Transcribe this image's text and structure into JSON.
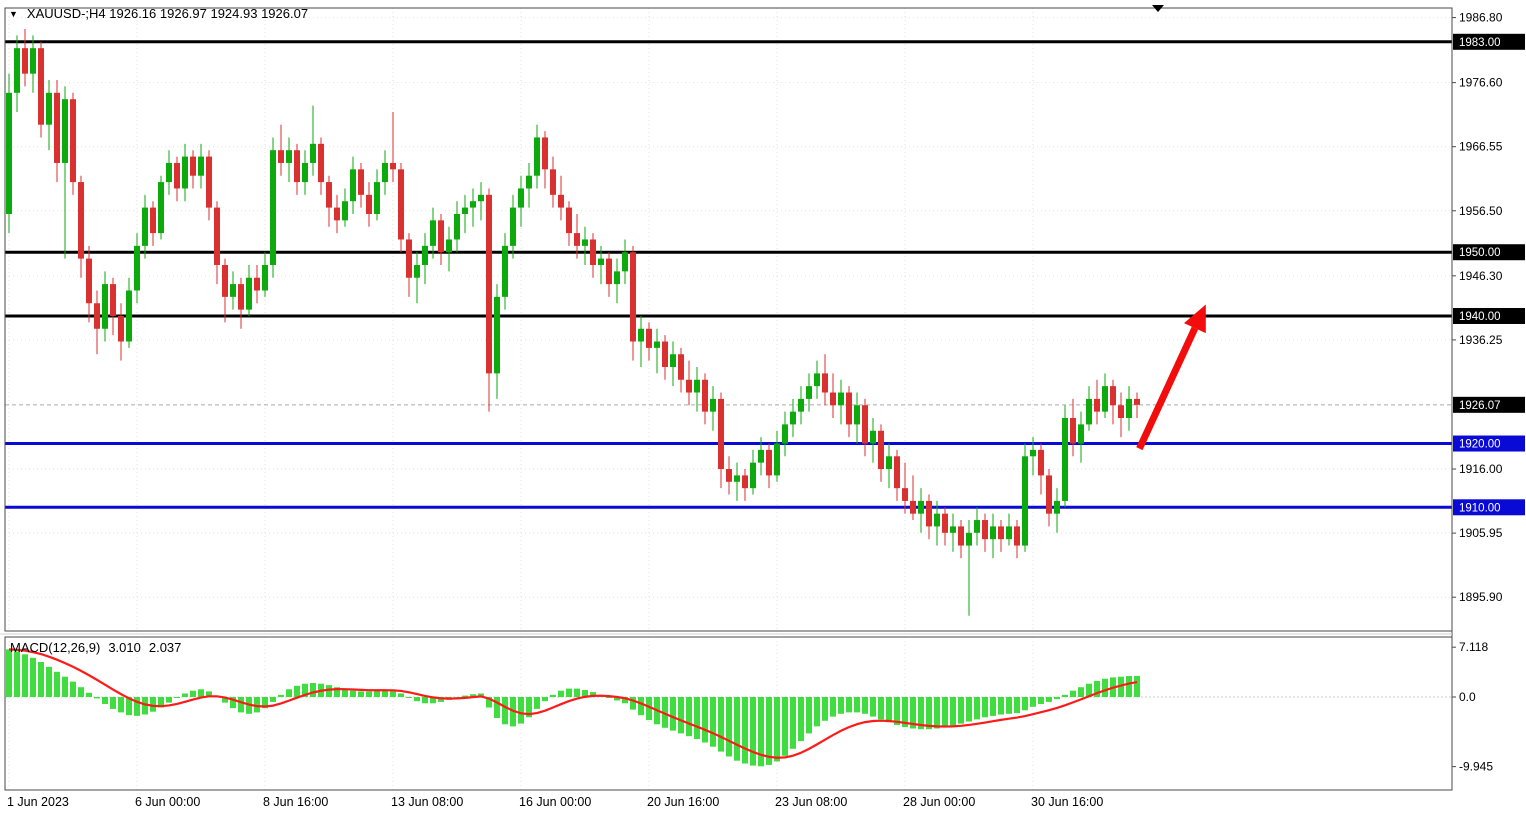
{
  "header": {
    "symbol_ohlc_text": "XAUUSD-;H4 1926.16 1926.97 1924.93 1926.07"
  },
  "chart_data": {
    "type": "candlestick",
    "title": "XAUUSD-;H4",
    "symbol": "XAUUSD-",
    "timeframe": "H4",
    "ohlc": {
      "open": 1926.16,
      "high": 1926.97,
      "low": 1924.93,
      "close": 1926.07
    },
    "price_axis": {
      "range": {
        "max": 1988.3,
        "min": 1890.6
      },
      "ticks": [
        {
          "value": 1986.8,
          "label": "1986.80"
        },
        {
          "value": 1976.6,
          "label": "1976.60"
        },
        {
          "value": 1966.55,
          "label": "1966.55"
        },
        {
          "value": 1956.5,
          "label": "1956.50"
        },
        {
          "value": 1946.3,
          "label": "1946.30"
        },
        {
          "value": 1936.25,
          "label": "1936.25"
        },
        {
          "value": 1916.0,
          "label": "1916.00"
        },
        {
          "value": 1905.95,
          "label": "1905.95"
        },
        {
          "value": 1895.9,
          "label": "1895.90"
        }
      ]
    },
    "time_axis": {
      "labels": [
        {
          "text": "1 Jun 2023",
          "index": 0
        },
        {
          "text": "6 Jun 00:00",
          "index": 16
        },
        {
          "text": "8 Jun 16:00",
          "index": 32
        },
        {
          "text": "13 Jun 08:00",
          "index": 48
        },
        {
          "text": "16 Jun 00:00",
          "index": 64
        },
        {
          "text": "20 Jun 16:00",
          "index": 80
        },
        {
          "text": "23 Jun 08:00",
          "index": 96
        },
        {
          "text": "28 Jun 00:00",
          "index": 112
        },
        {
          "text": "30 Jun 16:00",
          "index": 128
        }
      ]
    },
    "levels": [
      {
        "value": 1983.0,
        "label": "1983.00",
        "color": "#000000",
        "width": 3
      },
      {
        "value": 1950.0,
        "label": "1950.00",
        "color": "#000000",
        "width": 3
      },
      {
        "value": 1940.0,
        "label": "1940.00",
        "color": "#000000",
        "width": 3
      },
      {
        "value": 1920.0,
        "label": "1920.00",
        "color": "#0a0ad6",
        "width": 3
      },
      {
        "value": 1910.0,
        "label": "1910.00",
        "color": "#0a0ad6",
        "width": 3
      }
    ],
    "current_price": {
      "value": 1926.07,
      "label": "1926.07",
      "box_color": "#000000"
    },
    "colors": {
      "up": "#0caa0c",
      "down": "#d93030",
      "grid": "#e2e2e2",
      "border": "#4a4a4a",
      "arrow": "#f20c0c",
      "macd_hist": "#3fdd3f",
      "macd_signal": "#ff1a1a"
    },
    "trend_arrow": {
      "from_index": 141.3,
      "from_price": 1919.2,
      "to_index": 149.6,
      "to_price": 1941.8,
      "width": 7
    },
    "candles": [
      [
        1956,
        1978,
        1953,
        1975
      ],
      [
        1975,
        1984,
        1972,
        1982
      ],
      [
        1982,
        1985,
        1976,
        1978
      ],
      [
        1978,
        1984,
        1975,
        1982
      ],
      [
        1982,
        1983,
        1968,
        1970
      ],
      [
        1970,
        1977,
        1966,
        1975
      ],
      [
        1975,
        1977,
        1961,
        1964
      ],
      [
        1964,
        1976,
        1949,
        1974
      ],
      [
        1974,
        1975,
        1959,
        1961
      ],
      [
        1961,
        1962,
        1946,
        1949
      ],
      [
        1949,
        1951,
        1939,
        1942
      ],
      [
        1942,
        1944,
        1934,
        1938
      ],
      [
        1938,
        1947,
        1936,
        1945
      ],
      [
        1945,
        1946,
        1937,
        1940
      ],
      [
        1940,
        1942,
        1933,
        1936
      ],
      [
        1936,
        1946,
        1935,
        1944
      ],
      [
        1944,
        1953,
        1942,
        1951
      ],
      [
        1951,
        1959,
        1949,
        1957
      ],
      [
        1957,
        1958,
        1951,
        1953
      ],
      [
        1953,
        1962,
        1952,
        1961
      ],
      [
        1961,
        1966,
        1959,
        1964
      ],
      [
        1964,
        1965,
        1958,
        1960
      ],
      [
        1960,
        1967,
        1958,
        1965
      ],
      [
        1965,
        1966,
        1960,
        1962
      ],
      [
        1962,
        1967,
        1960,
        1965
      ],
      [
        1965,
        1966,
        1955,
        1957
      ],
      [
        1957,
        1958,
        1945,
        1948
      ],
      [
        1948,
        1949,
        1939,
        1943
      ],
      [
        1943,
        1947,
        1941,
        1945
      ],
      [
        1945,
        1946,
        1938,
        1941
      ],
      [
        1941,
        1948,
        1940,
        1946
      ],
      [
        1946,
        1948,
        1942,
        1944
      ],
      [
        1944,
        1950,
        1943,
        1948
      ],
      [
        1948,
        1968,
        1946,
        1966
      ],
      [
        1966,
        1970,
        1962,
        1964
      ],
      [
        1964,
        1968,
        1961,
        1966
      ],
      [
        1966,
        1967,
        1959,
        1961
      ],
      [
        1961,
        1966,
        1959,
        1964
      ],
      [
        1964,
        1973,
        1962,
        1967
      ],
      [
        1967,
        1968,
        1959,
        1961
      ],
      [
        1961,
        1962,
        1954,
        1957
      ],
      [
        1957,
        1959,
        1953,
        1955
      ],
      [
        1955,
        1960,
        1954,
        1958
      ],
      [
        1958,
        1965,
        1956,
        1963
      ],
      [
        1963,
        1964,
        1957,
        1959
      ],
      [
        1959,
        1961,
        1954,
        1956
      ],
      [
        1956,
        1963,
        1955,
        1961
      ],
      [
        1961,
        1966,
        1959,
        1964
      ],
      [
        1964,
        1972,
        1961,
        1963
      ],
      [
        1963,
        1964,
        1950,
        1952
      ],
      [
        1952,
        1953,
        1943,
        1946
      ],
      [
        1946,
        1950,
        1942,
        1948
      ],
      [
        1948,
        1953,
        1945,
        1951
      ],
      [
        1951,
        1957,
        1949,
        1955
      ],
      [
        1955,
        1956,
        1948,
        1950
      ],
      [
        1950,
        1954,
        1947,
        1952
      ],
      [
        1952,
        1958,
        1950,
        1956
      ],
      [
        1956,
        1959,
        1953,
        1957
      ],
      [
        1957,
        1960,
        1954,
        1958
      ],
      [
        1958,
        1961,
        1955,
        1959
      ],
      [
        1959,
        1960,
        1925,
        1931
      ],
      [
        1931,
        1945,
        1927,
        1943
      ],
      [
        1943,
        1953,
        1941,
        1951
      ],
      [
        1951,
        1959,
        1949,
        1957
      ],
      [
        1957,
        1962,
        1954,
        1960
      ],
      [
        1960,
        1964,
        1957,
        1962
      ],
      [
        1962,
        1970,
        1960,
        1968
      ],
      [
        1968,
        1969,
        1960,
        1963
      ],
      [
        1963,
        1965,
        1957,
        1959
      ],
      [
        1959,
        1962,
        1955,
        1957
      ],
      [
        1957,
        1958,
        1951,
        1953
      ],
      [
        1953,
        1956,
        1949,
        1951
      ],
      [
        1951,
        1954,
        1948,
        1952
      ],
      [
        1952,
        1953,
        1946,
        1948
      ],
      [
        1948,
        1951,
        1945,
        1949
      ],
      [
        1949,
        1950,
        1943,
        1945
      ],
      [
        1945,
        1949,
        1942,
        1947
      ],
      [
        1947,
        1952,
        1945,
        1950
      ],
      [
        1950,
        1951,
        1933,
        1936
      ],
      [
        1936,
        1940,
        1932,
        1938
      ],
      [
        1938,
        1939,
        1933,
        1935
      ],
      [
        1935,
        1938,
        1931,
        1936
      ],
      [
        1936,
        1937,
        1930,
        1932
      ],
      [
        1932,
        1936,
        1929,
        1934
      ],
      [
        1934,
        1935,
        1928,
        1930
      ],
      [
        1930,
        1933,
        1926,
        1928
      ],
      [
        1928,
        1932,
        1925,
        1930
      ],
      [
        1930,
        1931,
        1923,
        1925
      ],
      [
        1925,
        1929,
        1922,
        1927
      ],
      [
        1927,
        1928,
        1913,
        1916
      ],
      [
        1916,
        1918,
        1912,
        1914
      ],
      [
        1914,
        1917,
        1911,
        1915
      ],
      [
        1915,
        1916,
        1911,
        1913
      ],
      [
        1913,
        1919,
        1912,
        1917
      ],
      [
        1917,
        1921,
        1915,
        1919
      ],
      [
        1919,
        1920,
        1913,
        1915
      ],
      [
        1915,
        1922,
        1914,
        1920
      ],
      [
        1920,
        1925,
        1918,
        1923
      ],
      [
        1923,
        1927,
        1921,
        1925
      ],
      [
        1925,
        1929,
        1923,
        1927
      ],
      [
        1927,
        1931,
        1925,
        1929
      ],
      [
        1929,
        1933,
        1927,
        1931
      ],
      [
        1931,
        1934,
        1926,
        1928
      ],
      [
        1928,
        1931,
        1924,
        1926
      ],
      [
        1926,
        1930,
        1923,
        1928
      ],
      [
        1928,
        1929,
        1921,
        1923
      ],
      [
        1923,
        1928,
        1920,
        1926
      ],
      [
        1926,
        1927,
        1918,
        1920
      ],
      [
        1920,
        1924,
        1917,
        1922
      ],
      [
        1922,
        1923,
        1914,
        1916
      ],
      [
        1916,
        1920,
        1913,
        1918
      ],
      [
        1918,
        1919,
        1911,
        1913
      ],
      [
        1913,
        1917,
        1909,
        1911
      ],
      [
        1911,
        1915,
        1908,
        1909
      ],
      [
        1909,
        1913,
        1906,
        1911
      ],
      [
        1911,
        1912,
        1905,
        1907
      ],
      [
        1907,
        1911,
        1904,
        1909
      ],
      [
        1909,
        1910,
        1904,
        1906
      ],
      [
        1906,
        1909,
        1903,
        1907
      ],
      [
        1907,
        1908,
        1902,
        1904
      ],
      [
        1904,
        1908,
        1893,
        1906
      ],
      [
        1906,
        1910,
        1904,
        1908
      ],
      [
        1908,
        1909,
        1903,
        1905
      ],
      [
        1905,
        1909,
        1902,
        1907
      ],
      [
        1907,
        1908,
        1903,
        1905
      ],
      [
        1905,
        1909,
        1904,
        1907
      ],
      [
        1907,
        1908,
        1902,
        1904
      ],
      [
        1904,
        1920,
        1903,
        1918
      ],
      [
        1918,
        1921,
        1915,
        1919
      ],
      [
        1919,
        1920,
        1912,
        1915
      ],
      [
        1915,
        1916,
        1907,
        1909
      ],
      [
        1909,
        1913,
        1906,
        1911
      ],
      [
        1911,
        1926,
        1910,
        1924
      ],
      [
        1924,
        1927,
        1918,
        1920
      ],
      [
        1920,
        1925,
        1917,
        1923
      ],
      [
        1923,
        1929,
        1922,
        1927
      ],
      [
        1927,
        1930,
        1923,
        1925
      ],
      [
        1925,
        1931,
        1924,
        1929
      ],
      [
        1929,
        1930,
        1923,
        1926
      ],
      [
        1926,
        1928,
        1921,
        1924
      ],
      [
        1924,
        1929,
        1922,
        1927
      ],
      [
        1927,
        1928,
        1924,
        1926.07
      ]
    ],
    "macd": {
      "label": "MACD(12,26,9)",
      "macd_value": "3.010",
      "signal_value": "2.037",
      "ticks": [
        {
          "value": 7.118,
          "label": "7.118"
        },
        {
          "value": 0,
          "label": "0.0"
        },
        {
          "value": -9.945,
          "label": "-9.945"
        }
      ],
      "histogram": [
        6.8,
        6.5,
        6.1,
        5.6,
        5.0,
        4.3,
        3.6,
        2.9,
        2.2,
        1.4,
        0.6,
        -0.2,
        -1.0,
        -1.7,
        -2.2,
        -2.6,
        -2.7,
        -2.5,
        -2.1,
        -1.5,
        -0.8,
        -0.1,
        0.5,
        0.9,
        1.1,
        0.8,
        0.1,
        -0.8,
        -1.6,
        -2.2,
        -2.4,
        -2.2,
        -1.6,
        -0.7,
        0.3,
        1.1,
        1.6,
        1.9,
        2.0,
        1.9,
        1.7,
        1.4,
        1.1,
        0.9,
        0.8,
        0.8,
        0.9,
        1.0,
        0.9,
        0.5,
        -0.1,
        -0.6,
        -0.9,
        -0.9,
        -0.7,
        -0.4,
        -0.1,
        0.2,
        0.4,
        0.5,
        -1.5,
        -3.0,
        -3.9,
        -4.2,
        -3.8,
        -2.9,
        -1.7,
        -0.6,
        0.3,
        0.9,
        1.2,
        1.2,
        1.0,
        0.7,
        0.3,
        -0.1,
        -0.5,
        -0.9,
        -1.8,
        -2.6,
        -3.3,
        -3.9,
        -4.4,
        -4.8,
        -5.2,
        -5.6,
        -6.0,
        -6.5,
        -7.1,
        -7.8,
        -8.5,
        -9.1,
        -9.5,
        -9.8,
        -9.9,
        -9.7,
        -9.2,
        -8.4,
        -7.4,
        -6.3,
        -5.2,
        -4.2,
        -3.4,
        -2.8,
        -2.4,
        -2.2,
        -2.2,
        -2.4,
        -2.8,
        -3.2,
        -3.6,
        -4.0,
        -4.3,
        -4.5,
        -4.6,
        -4.6,
        -4.5,
        -4.3,
        -4.1,
        -3.8,
        -3.5,
        -3.2,
        -2.9,
        -2.7,
        -2.5,
        -2.4,
        -2.3,
        -1.9,
        -1.4,
        -1.0,
        -0.7,
        -0.3,
        0.3,
        0.9,
        1.4,
        1.9,
        2.3,
        2.6,
        2.8,
        2.9,
        3.0,
        3.01
      ]
    }
  }
}
